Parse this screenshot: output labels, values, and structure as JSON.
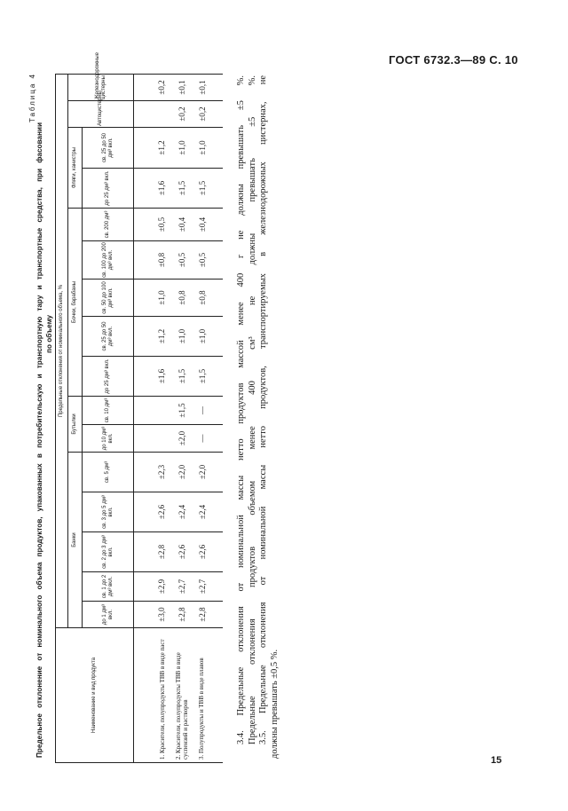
{
  "header": {
    "gost": "ГОСТ 6732.3—89 С. 10"
  },
  "footer": {
    "page_number": "15"
  },
  "table": {
    "number": "Таблица 4",
    "title_line1": "Предельное отклонение от номинального объема продуктов, упакованных в потребительскую и транспортную тару и транспортные средства, при фасовании",
    "title_line2": "по объему",
    "name_header": "Наименование и вид продукта",
    "deviation_header": "Предельные отклонения от номинального объема, %",
    "groups": [
      "Банки",
      "Бутылки",
      "Бочки, барабаны",
      "Фляги, канистры"
    ],
    "autocistern_header": "Автоцистерны",
    "railcistern_header": "Железнодорожные цистерны",
    "columns": [
      "до 1 дм³ вкл.",
      "св. 1 до 2 дм³ вкл.",
      "св. 2 до 3 дм³ вкл.",
      "св. 3 до 5 дм³ вкл.",
      "св. 5 дм³",
      "до 10 дм³ вкл.",
      "св. 10 дм³",
      "до 25 дм³ вкл.",
      "св. 25 до 50 дм³ вкл.",
      "св. 50 до 100 дм³ вкл.",
      "св. 100 до 200 дм³ вкл.",
      "св. 200 дм³",
      "до 25 дм³ вкл.",
      "св. 25 до 50 дм³ вкл."
    ],
    "rows": [
      {
        "name": "1. Красители, полупродукты ТВВ в виде паст",
        "values": [
          "±3,0",
          "±2,9",
          "±2,8",
          "±2,6",
          "±2,3",
          "",
          "",
          "±1,6",
          "±1,2",
          "±1,0",
          "±0,8",
          "±0,5",
          "±1,6",
          "±1,2",
          "",
          "±0,2"
        ]
      },
      {
        "name": "2. Красители, полупродукты ТВВ в виде суспензий и растворов",
        "values": [
          "±2,8",
          "±2,7",
          "±2,6",
          "±2,4",
          "±2,0",
          "±2,0",
          "±1,5",
          "±1,5",
          "±1,0",
          "±0,8",
          "±0,5",
          "±0,4",
          "±1,5",
          "±1,0",
          "±0,2",
          "±0,1"
        ]
      },
      {
        "name": "3. Полупродукты и ТВВ в виде плавов",
        "values": [
          "±2,8",
          "±2,7",
          "±2,6",
          "±2,4",
          "±2,0",
          "—",
          "—",
          "±1,5",
          "±1,0",
          "±0,8",
          "±0,5",
          "±0,4",
          "±1,5",
          "±1,0",
          "±0,2",
          "±0,1"
        ]
      }
    ]
  },
  "paragraphs": [
    "3.4. Предельные отклонения от номинальной массы нетто продуктов массой менее 400 г не должны превышать ±5 %.",
    "Предельные отклонения продуктов объемом менее 400 см³ не должны превышать ±5 %.",
    "3.5. Предельные отклонения от номинальной массы нетто продуктов, транспортируемых в железнодорожных цистернах, не",
    "должны превышать ±0,5 %."
  ]
}
